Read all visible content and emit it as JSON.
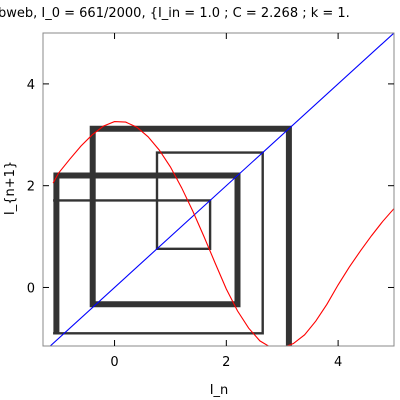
{
  "chart_data": {
    "type": "line",
    "title": "bweb, I_0 = 661/2000, {I_in = 1.0 ; C = 2.268 ; k = 1.",
    "xlabel": "I_n",
    "ylabel": "I_{n+1}",
    "xlim": [
      -1.28,
      5.0
    ],
    "ylim": [
      -1.15,
      5.0
    ],
    "x_ticks": [
      0,
      2,
      4
    ],
    "y_ticks": [
      0,
      2,
      4
    ],
    "grid": false,
    "legend": "none",
    "colors": {
      "identity": "#0000ff",
      "curve": "#ff0000",
      "cobweb": "#333333"
    },
    "series": [
      {
        "kind": "identity",
        "x": [
          -1.28,
          5.0
        ],
        "y": [
          -1.28,
          5.0
        ]
      },
      {
        "kind": "curve",
        "x": [
          -1.1,
          -1.0,
          -0.8,
          -0.6,
          -0.4,
          -0.2,
          0.0,
          0.2,
          0.4,
          0.6,
          0.8,
          1.0,
          1.2,
          1.4,
          1.6,
          1.8,
          2.0,
          2.2,
          2.4,
          2.6,
          2.8,
          3.0,
          3.2,
          3.4,
          3.6,
          3.8,
          4.0,
          4.2,
          4.4,
          4.6,
          4.8,
          5.0
        ],
        "y": [
          2.05,
          2.25,
          2.52,
          2.78,
          3.0,
          3.17,
          3.26,
          3.25,
          3.15,
          2.96,
          2.7,
          2.37,
          1.96,
          1.5,
          1.0,
          0.48,
          -0.03,
          -0.46,
          -0.8,
          -1.05,
          -1.18,
          -1.19,
          -1.1,
          -0.93,
          -0.66,
          -0.33,
          0.05,
          0.4,
          0.72,
          1.02,
          1.3,
          1.55
        ]
      }
    ],
    "cobweb": [
      {
        "stroke_weight": 1,
        "points": [
          [
            -1.1,
            1.71
          ],
          [
            1.71,
            1.71
          ],
          [
            1.71,
            0.76
          ],
          [
            0.76,
            0.76
          ],
          [
            0.76,
            2.65
          ],
          [
            2.65,
            2.65
          ],
          [
            2.65,
            -0.9
          ],
          [
            -1.1,
            -0.9
          ]
        ]
      },
      {
        "stroke_weight": 2.5,
        "points": [
          [
            -1.04,
            -0.9
          ],
          [
            -1.04,
            2.2
          ],
          [
            2.2,
            2.2
          ],
          [
            2.2,
            -0.33
          ],
          [
            -0.39,
            -0.33
          ],
          [
            -0.39,
            3.12
          ],
          [
            3.12,
            3.12
          ],
          [
            3.12,
            -1.15
          ]
        ]
      }
    ]
  }
}
